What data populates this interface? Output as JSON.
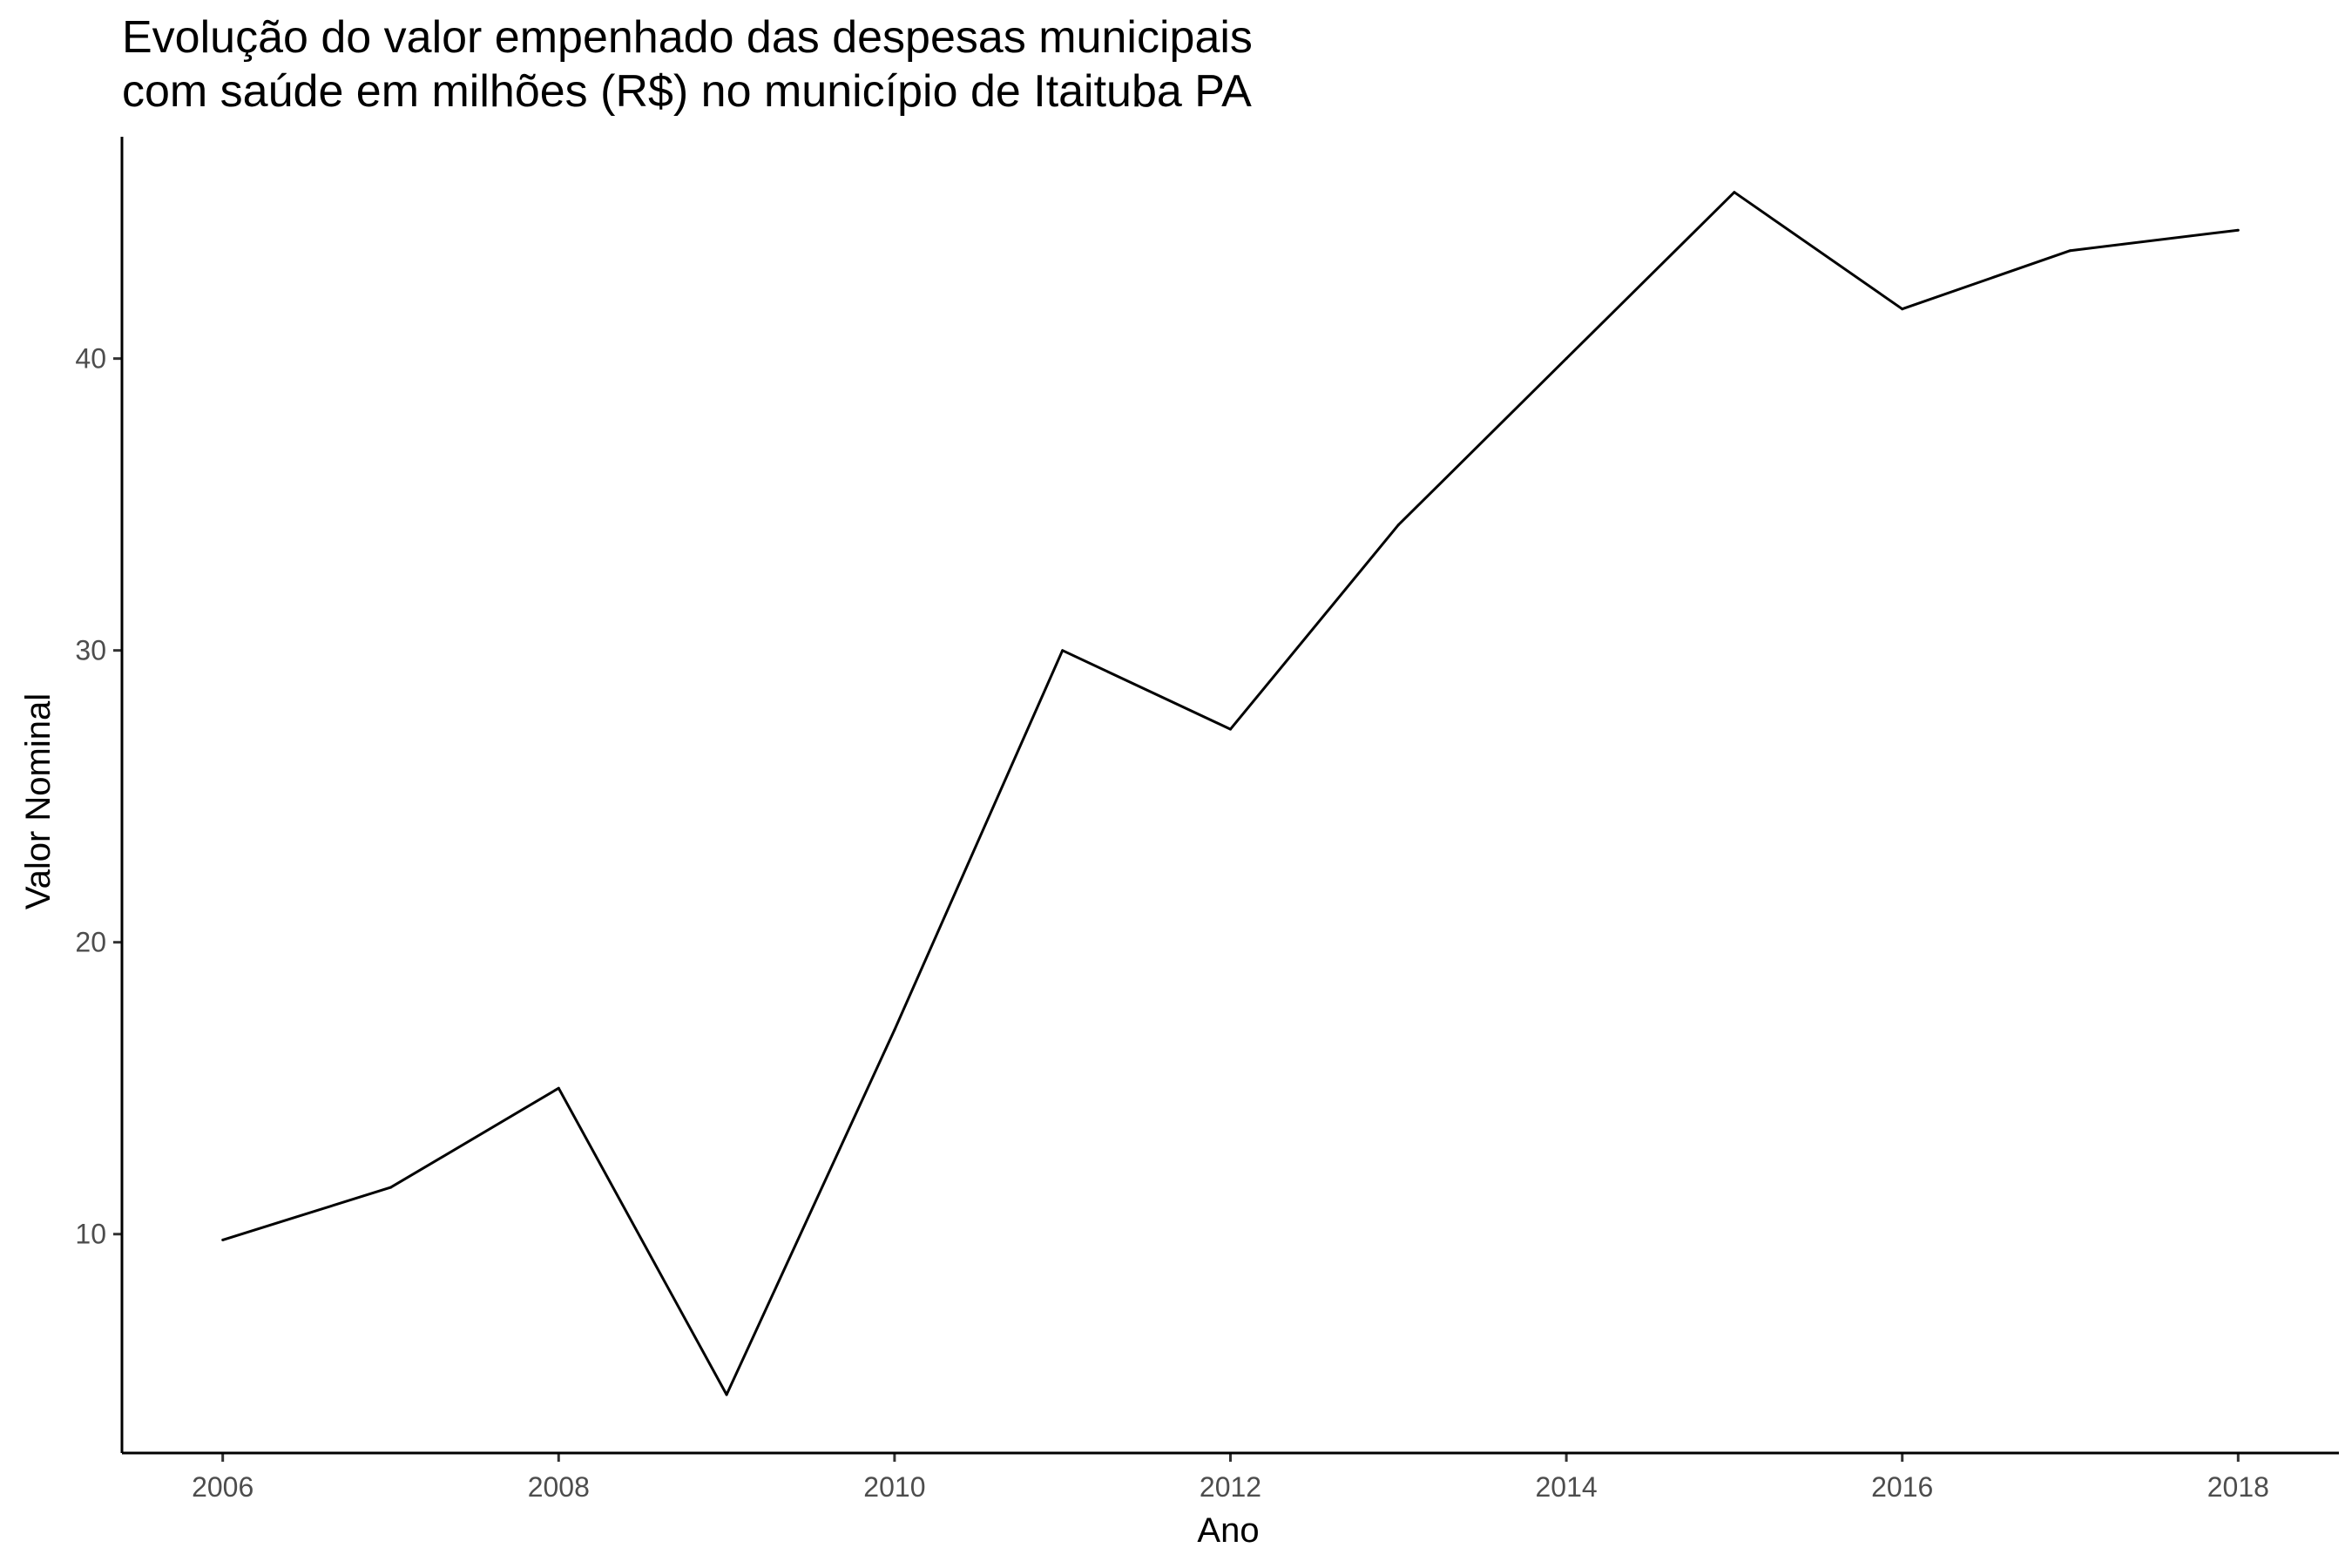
{
  "chart_data": {
    "type": "line",
    "title_lines": [
      "Evolução do valor empenhado das despesas municipais",
      "com saúde em milhões (R$) no município de Itaituba PA"
    ],
    "xlabel": "Ano",
    "ylabel": "Valor Nominal",
    "x": [
      2006,
      2007,
      2008,
      2009,
      2010,
      2011,
      2012,
      2013,
      2014,
      2015,
      2016,
      2017,
      2018
    ],
    "values": [
      9.8,
      11.6,
      15.0,
      4.5,
      17.0,
      30.0,
      27.3,
      34.3,
      40.0,
      45.7,
      41.7,
      43.7,
      44.4
    ],
    "xticks": [
      "2006",
      "2008",
      "2010",
      "2012",
      "2014",
      "2016",
      "2018"
    ],
    "yticks": [
      "10",
      "20",
      "30",
      "40"
    ],
    "xlim": [
      2005.4,
      2018.6
    ],
    "ylim": [
      2.5,
      47.6
    ],
    "grid": false,
    "line_color": "#000000"
  }
}
